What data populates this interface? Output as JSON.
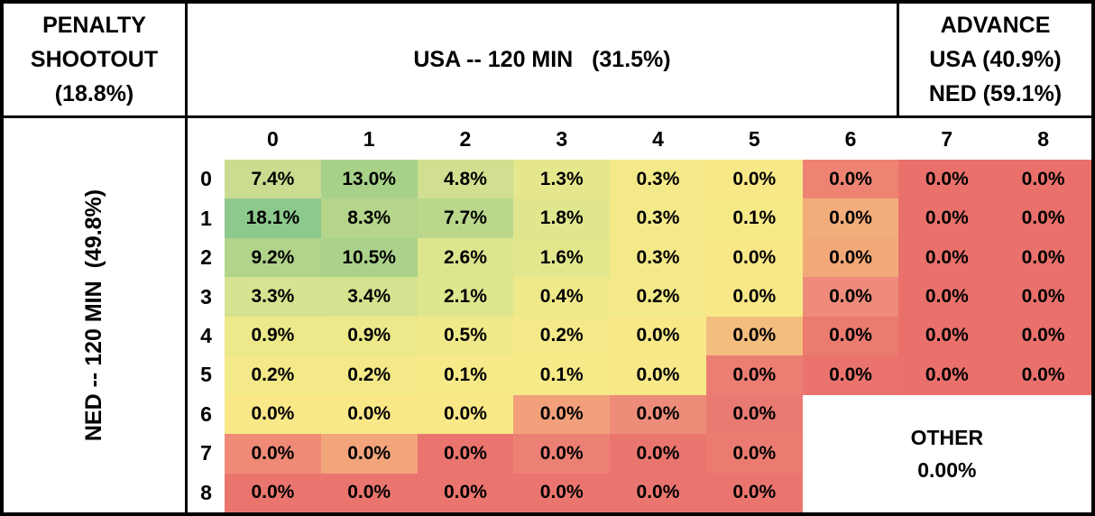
{
  "header": {
    "penalty_line1": "PENALTY",
    "penalty_line2": "SHOOTOUT",
    "penalty_line3": "(18.8%)",
    "usa_title": "USA -- 120 MIN   (31.5%)",
    "advance_line1": "ADVANCE",
    "advance_line2": "USA (40.9%)",
    "advance_line3": "NED (59.1%)"
  },
  "sidebar": {
    "ned_label": "NED -- 120 MIN  (49.8%)"
  },
  "other": {
    "line1": "OTHER",
    "line2": "0.00%"
  },
  "colors": {
    "scale_min_red": "#e9706b",
    "scale_mid_yellow": "#f8e888",
    "scale_max_green": "#8dc98c",
    "border": "#000000",
    "background": "#ffffff"
  },
  "chart_data": {
    "type": "heatmap",
    "title": "Scoreline probability matrix after 120 minutes",
    "x_axis": {
      "label": "USA -- 120 MIN   (31.5%)",
      "ticks": [
        "0",
        "1",
        "2",
        "3",
        "4",
        "5",
        "6",
        "7",
        "8"
      ]
    },
    "y_axis": {
      "label": "NED -- 120 MIN  (49.8%)",
      "ticks": [
        "0",
        "1",
        "2",
        "3",
        "4",
        "5",
        "6",
        "7",
        "8"
      ]
    },
    "summary": {
      "penalty_shootout_probability": "18.8%",
      "usa_win_120min_probability": "31.5%",
      "ned_win_120min_probability": "49.8%",
      "advance_usa_probability": "40.9%",
      "advance_ned_probability": "59.1%",
      "other_probability": "0.00%"
    },
    "merged_other_region": {
      "rows": [
        6,
        7,
        8
      ],
      "cols": [
        6,
        7,
        8
      ],
      "label": "OTHER",
      "value": "0.00%"
    },
    "cells": [
      [
        {
          "v": "7.4%",
          "c": "#c9dc90"
        },
        {
          "v": "13.0%",
          "c": "#a7d189"
        },
        {
          "v": "4.8%",
          "c": "#d0df90"
        },
        {
          "v": "1.3%",
          "c": "#e5e78d"
        },
        {
          "v": "0.3%",
          "c": "#f4e988"
        },
        {
          "v": "0.0%",
          "c": "#f8e888"
        },
        {
          "v": "0.0%",
          "c": "#ee8374"
        },
        {
          "v": "0.0%",
          "c": "#e9706b"
        },
        {
          "v": "0.0%",
          "c": "#e9706b"
        }
      ],
      [
        {
          "v": "18.1%",
          "c": "#8dc98c"
        },
        {
          "v": "8.3%",
          "c": "#b5d58b"
        },
        {
          "v": "7.7%",
          "c": "#bad78c"
        },
        {
          "v": "1.8%",
          "c": "#e0e68d"
        },
        {
          "v": "0.3%",
          "c": "#f4e988"
        },
        {
          "v": "0.1%",
          "c": "#f6e987"
        },
        {
          "v": "0.0%",
          "c": "#f2ad7a"
        },
        {
          "v": "0.0%",
          "c": "#e9706b"
        },
        {
          "v": "0.0%",
          "c": "#e9706b"
        }
      ],
      [
        {
          "v": "9.2%",
          "c": "#b1d48a"
        },
        {
          "v": "10.5%",
          "c": "#aad28a"
        },
        {
          "v": "2.6%",
          "c": "#dde58e"
        },
        {
          "v": "1.6%",
          "c": "#e2e78d"
        },
        {
          "v": "0.3%",
          "c": "#f4e988"
        },
        {
          "v": "0.0%",
          "c": "#f8e888"
        },
        {
          "v": "0.0%",
          "c": "#f2a978"
        },
        {
          "v": "0.0%",
          "c": "#e9706b"
        },
        {
          "v": "0.0%",
          "c": "#e9706b"
        }
      ],
      [
        {
          "v": "3.3%",
          "c": "#d6e390"
        },
        {
          "v": "3.4%",
          "c": "#d5e390"
        },
        {
          "v": "2.1%",
          "c": "#dee68e"
        },
        {
          "v": "0.4%",
          "c": "#efe989"
        },
        {
          "v": "0.2%",
          "c": "#f4e988"
        },
        {
          "v": "0.0%",
          "c": "#f8e888"
        },
        {
          "v": "0.0%",
          "c": "#ee8b7a"
        },
        {
          "v": "0.0%",
          "c": "#e9706b"
        },
        {
          "v": "0.0%",
          "c": "#e9706b"
        }
      ],
      [
        {
          "v": "0.9%",
          "c": "#ede98a"
        },
        {
          "v": "0.9%",
          "c": "#ede98a"
        },
        {
          "v": "0.5%",
          "c": "#f0e989"
        },
        {
          "v": "0.2%",
          "c": "#f4e988"
        },
        {
          "v": "0.0%",
          "c": "#f8e888"
        },
        {
          "v": "0.0%",
          "c": "#f3bd7e"
        },
        {
          "v": "0.0%",
          "c": "#eb7a6f"
        },
        {
          "v": "0.0%",
          "c": "#e9706b"
        },
        {
          "v": "0.0%",
          "c": "#e9706b"
        }
      ],
      [
        {
          "v": "0.2%",
          "c": "#f4e988"
        },
        {
          "v": "0.2%",
          "c": "#f4e988"
        },
        {
          "v": "0.1%",
          "c": "#f6e987"
        },
        {
          "v": "0.1%",
          "c": "#f6e987"
        },
        {
          "v": "0.0%",
          "c": "#f8e888"
        },
        {
          "v": "0.0%",
          "c": "#ec7d72"
        },
        {
          "v": "0.0%",
          "c": "#ea746d"
        },
        {
          "v": "0.0%",
          "c": "#e9706b"
        },
        {
          "v": "0.0%",
          "c": "#e9706b"
        }
      ],
      [
        {
          "v": "0.0%",
          "c": "#f8e888"
        },
        {
          "v": "0.0%",
          "c": "#f8e888"
        },
        {
          "v": "0.0%",
          "c": "#f8e888"
        },
        {
          "v": "0.0%",
          "c": "#f1a07b"
        },
        {
          "v": "0.0%",
          "c": "#ee8c7a"
        },
        {
          "v": "0.0%",
          "c": "#e97a72"
        }
      ],
      [
        {
          "v": "0.0%",
          "c": "#ef8a77"
        },
        {
          "v": "0.0%",
          "c": "#f2a57b"
        },
        {
          "v": "0.0%",
          "c": "#ea746e"
        },
        {
          "v": "0.0%",
          "c": "#ec8074"
        },
        {
          "v": "0.0%",
          "c": "#ea756e"
        },
        {
          "v": "0.0%",
          "c": "#eb7a71"
        }
      ],
      [
        {
          "v": "0.0%",
          "c": "#ea756f"
        },
        {
          "v": "0.0%",
          "c": "#ea756f"
        },
        {
          "v": "0.0%",
          "c": "#ea756f"
        },
        {
          "v": "0.0%",
          "c": "#ea756f"
        },
        {
          "v": "0.0%",
          "c": "#ea756f"
        },
        {
          "v": "0.0%",
          "c": "#ea756f"
        }
      ]
    ]
  }
}
